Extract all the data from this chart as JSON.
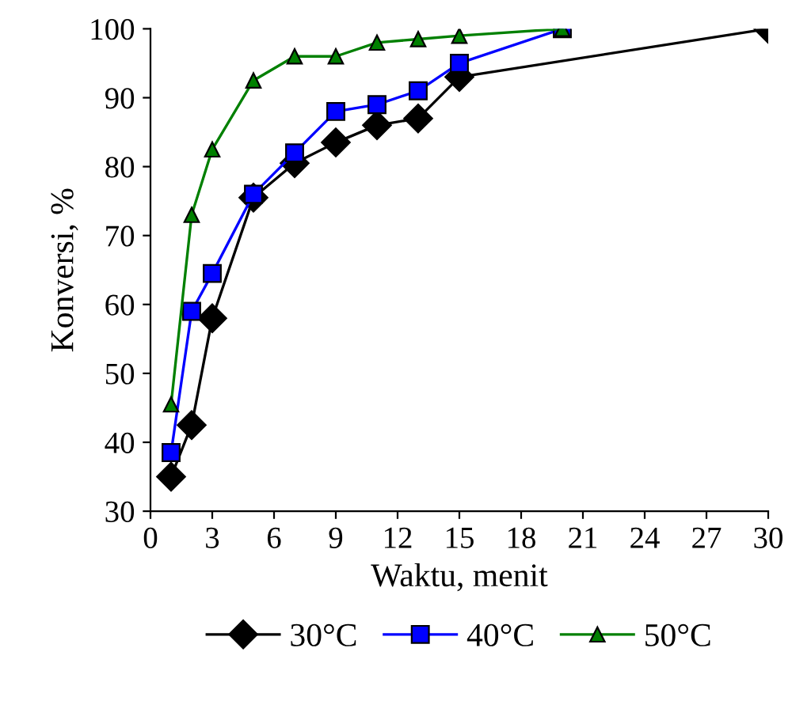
{
  "chart_data": {
    "type": "line",
    "xlabel": "Waktu, menit",
    "ylabel": "Konversi, %",
    "xlim": [
      0,
      30
    ],
    "xticks": [
      0,
      3,
      6,
      9,
      12,
      15,
      18,
      21,
      24,
      27,
      30
    ],
    "ylim": [
      30,
      100
    ],
    "yticks": [
      30,
      40,
      50,
      60,
      70,
      80,
      90,
      100
    ],
    "grid": false,
    "legend": "bottom",
    "line_style": "solid",
    "series": [
      {
        "name": "30°C",
        "color": "#000000",
        "marker": "diamond",
        "x": [
          1,
          2,
          3,
          5,
          7,
          9,
          11,
          13,
          15,
          30
        ],
        "values": [
          35,
          42.5,
          58,
          75.5,
          80.5,
          83.5,
          86,
          87,
          93,
          100
        ]
      },
      {
        "name": "40°C",
        "color": "#0000ff",
        "marker": "square",
        "x": [
          1,
          2,
          3,
          5,
          7,
          9,
          11,
          13,
          15,
          20
        ],
        "values": [
          38.5,
          59,
          64.5,
          76,
          82,
          88,
          89,
          91,
          95,
          100
        ]
      },
      {
        "name": "50°C",
        "color": "#008000",
        "marker": "triangle",
        "x": [
          1,
          2,
          3,
          5,
          7,
          9,
          11,
          13,
          15,
          20
        ],
        "values": [
          45.5,
          73,
          82.5,
          92.5,
          96,
          96,
          98,
          98.5,
          99,
          100
        ]
      }
    ]
  }
}
